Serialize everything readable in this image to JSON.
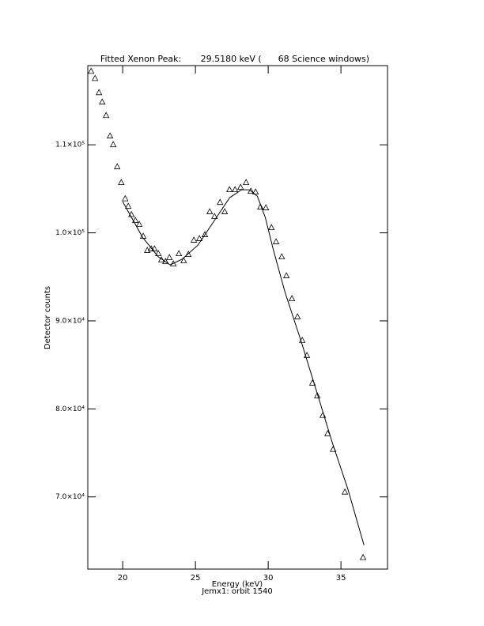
{
  "chart_data": {
    "type": "scatter",
    "title": "Fitted Xenon Peak:       29.5180 keV (      68 Science windows)",
    "x_label": "Energy (keV)",
    "subtitle": "Jemx1: orbit 1540",
    "y_label": "Detector counts",
    "xlim": [
      17.6,
      38.2
    ],
    "ylim": [
      61800,
      119000
    ],
    "xticks": [
      20,
      25,
      30,
      35
    ],
    "yticks": [
      {
        "value": 70000,
        "label": "7.0×10⁴"
      },
      {
        "value": 80000,
        "label": "8.0×10⁴"
      },
      {
        "value": 90000,
        "label": "9.0×10⁴"
      },
      {
        "value": 100000,
        "label": "1.0×10⁵"
      },
      {
        "value": 110000,
        "label": "1.1×10⁵"
      }
    ],
    "color": "#000000",
    "series": [
      {
        "style": "triangles",
        "x": [
          17.83,
          18.1,
          18.37,
          18.59,
          18.86,
          19.13,
          19.35,
          19.62,
          19.9,
          20.17,
          20.38,
          20.6,
          20.87,
          21.14,
          21.41,
          21.69,
          21.96,
          22.18,
          22.45,
          22.66,
          22.94,
          23.21,
          23.48,
          23.86,
          24.19,
          24.51,
          24.89,
          25.27,
          25.65,
          25.98,
          26.31,
          26.69,
          27.01,
          27.34,
          27.72,
          28.1,
          28.48,
          28.81,
          29.13,
          29.46,
          29.84,
          30.22,
          30.54,
          30.93,
          31.25,
          31.63,
          32.01,
          32.34,
          32.66,
          33.04,
          33.37,
          33.75,
          34.08,
          34.46,
          35.27,
          36.52
        ],
        "values": [
          118340,
          117530,
          115920,
          114840,
          113320,
          110990,
          110000,
          107490,
          105700,
          103860,
          103000,
          102060,
          101390,
          100940,
          99600,
          97980,
          98160,
          98160,
          97620,
          96910,
          96730,
          97170,
          96460,
          97620,
          96820,
          97530,
          99150,
          99330,
          99780,
          102380,
          101840,
          103450,
          102380,
          104890,
          104890,
          105160,
          105700,
          104710,
          104620,
          102920,
          102830,
          100580,
          98970,
          97260,
          95110,
          92510,
          90450,
          87760,
          86050,
          82920,
          81480,
          79240,
          77170,
          75380,
          70540,
          63100
        ]
      },
      {
        "style": "line",
        "x": [
          20.0,
          21.36,
          22.45,
          23.26,
          24.08,
          25.17,
          26.26,
          27.35,
          28.16,
          28.71,
          29.25,
          29.8,
          30.34,
          31.16,
          32.23,
          33.32,
          34.4,
          35.49,
          36.58
        ],
        "values": [
          103540,
          99510,
          97270,
          96370,
          97000,
          98610,
          101300,
          103990,
          104890,
          104890,
          104170,
          101750,
          98160,
          93230,
          87850,
          82020,
          76190,
          70810,
          64530
        ]
      }
    ]
  }
}
